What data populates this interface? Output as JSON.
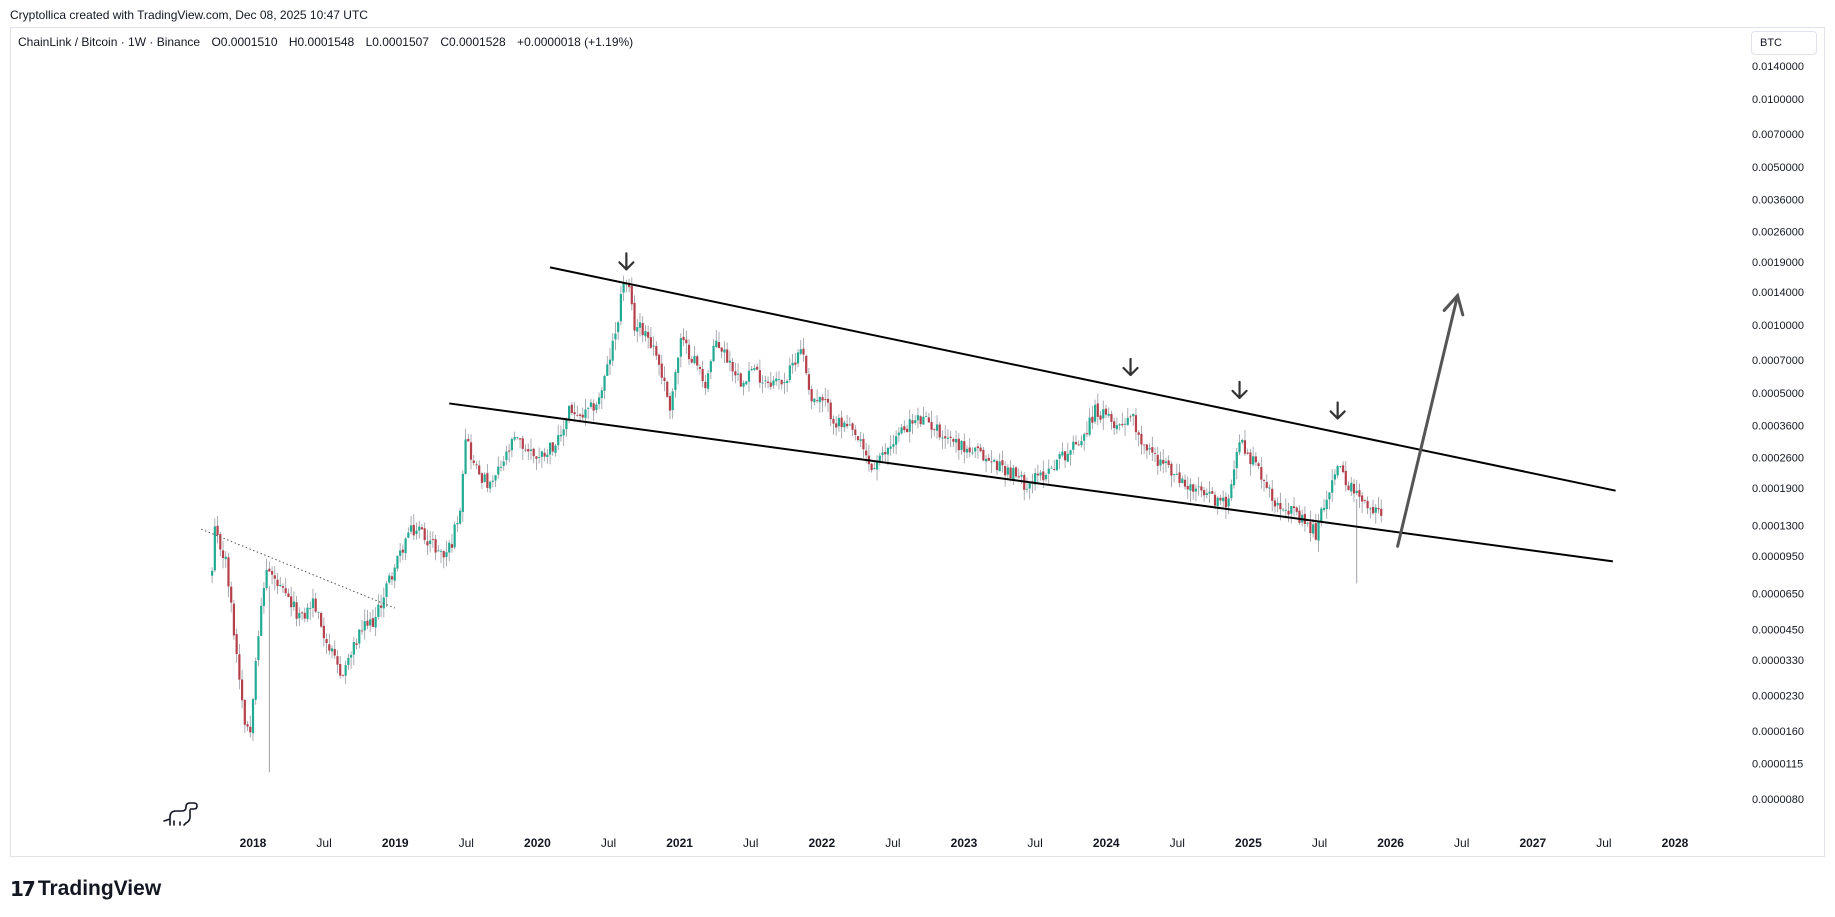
{
  "header": {
    "attribution": "Cryptollica created with TradingView.com, Dec 08, 2025 10:47 UTC"
  },
  "legend": {
    "symbol": "ChainLink / Bitcoin · 1W · Binance",
    "open": "O0.0001510",
    "high": "H0.0001548",
    "low": "L0.0001507",
    "close": "C0.0001528",
    "change": "+0.0000018 (+1.19%)"
  },
  "currency": "BTC",
  "footer": {
    "brand": "TradingView"
  },
  "colors": {
    "up": "#089981",
    "down": "#f23645",
    "candle_up": "#22ab94",
    "candle_down": "#b6404a",
    "line": "#000000",
    "arrow": "#333333"
  },
  "chart_data": {
    "type": "candlestick",
    "scale": "log",
    "y_ticks": [
      "0.0140000",
      "0.0100000",
      "0.0070000",
      "0.0050000",
      "0.0036000",
      "0.0026000",
      "0.0019000",
      "0.0014000",
      "0.0010000",
      "0.0007000",
      "0.0005000",
      "0.0003600",
      "0.0002600",
      "0.0001900",
      "0.0001300",
      "0.0000950",
      "0.0000650",
      "0.0000450",
      "0.0000330",
      "0.0000230",
      "0.0000160",
      "0.0000115",
      "0.0000080"
    ],
    "x_ticks": [
      {
        "label": "2018",
        "major": true
      },
      {
        "label": "Jul",
        "major": false
      },
      {
        "label": "2019",
        "major": true
      },
      {
        "label": "Jul",
        "major": false
      },
      {
        "label": "2020",
        "major": true
      },
      {
        "label": "Jul",
        "major": false
      },
      {
        "label": "2021",
        "major": true
      },
      {
        "label": "Jul",
        "major": false
      },
      {
        "label": "2022",
        "major": true
      },
      {
        "label": "Jul",
        "major": false
      },
      {
        "label": "2023",
        "major": true
      },
      {
        "label": "Jul",
        "major": false
      },
      {
        "label": "2024",
        "major": true
      },
      {
        "label": "Jul",
        "major": false
      },
      {
        "label": "2025",
        "major": true
      },
      {
        "label": "Jul",
        "major": false
      },
      {
        "label": "2026",
        "major": true
      },
      {
        "label": "Jul",
        "major": false
      },
      {
        "label": "2027",
        "major": true
      },
      {
        "label": "Jul",
        "major": false
      },
      {
        "label": "2028",
        "major": true
      }
    ],
    "price_path": [
      [
        "2017-09-18",
        8e-05
      ],
      [
        "2017-09-25",
        0.00012
      ],
      [
        "2017-10-23",
        9e-05
      ],
      [
        "2017-11-20",
        3.5e-05
      ],
      [
        "2017-12-11",
        1.8e-05
      ],
      [
        "2017-12-25",
        1.6e-05
      ],
      [
        "2018-01-08",
        3.5e-05
      ],
      [
        "2018-02-05",
        8.5e-05
      ],
      [
        "2018-03-05",
        7e-05
      ],
      [
        "2018-04-02",
        6e-05
      ],
      [
        "2018-05-07",
        5e-05
      ],
      [
        "2018-06-04",
        6e-05
      ],
      [
        "2018-07-09",
        4e-05
      ],
      [
        "2018-08-13",
        2.8e-05
      ],
      [
        "2018-09-10",
        3.5e-05
      ],
      [
        "2018-10-08",
        4.5e-05
      ],
      [
        "2018-11-12",
        5e-05
      ],
      [
        "2018-12-10",
        7e-05
      ],
      [
        "2019-01-07",
        9e-05
      ],
      [
        "2019-02-04",
        0.00012
      ],
      [
        "2019-03-04",
        0.000125
      ],
      [
        "2019-04-01",
        0.00011
      ],
      [
        "2019-05-06",
        9.5e-05
      ],
      [
        "2019-05-27",
        0.00011
      ],
      [
        "2019-06-17",
        0.00016
      ],
      [
        "2019-07-01",
        0.00033
      ],
      [
        "2019-07-22",
        0.00024
      ],
      [
        "2019-09-02",
        0.00019
      ],
      [
        "2019-10-07",
        0.00025
      ],
      [
        "2019-11-04",
        0.00031
      ],
      [
        "2019-12-09",
        0.00028
      ],
      [
        "2020-01-06",
        0.00026
      ],
      [
        "2020-02-03",
        0.00029
      ],
      [
        "2020-03-02",
        0.00031
      ],
      [
        "2020-03-23",
        0.00044
      ],
      [
        "2020-04-13",
        0.00038
      ],
      [
        "2020-05-11",
        0.00041
      ],
      [
        "2020-06-08",
        0.00047
      ],
      [
        "2020-06-29",
        0.00064
      ],
      [
        "2020-07-20",
        0.00092
      ],
      [
        "2020-08-10",
        0.00158
      ],
      [
        "2020-08-24",
        0.00138
      ],
      [
        "2020-09-07",
        0.00099
      ],
      [
        "2020-10-05",
        0.00095
      ],
      [
        "2020-11-02",
        0.00075
      ],
      [
        "2020-12-07",
        0.00044
      ],
      [
        "2021-01-04",
        0.00085
      ],
      [
        "2021-02-08",
        0.0007
      ],
      [
        "2021-03-08",
        0.00055
      ],
      [
        "2021-04-05",
        0.00085
      ],
      [
        "2021-05-03",
        0.00072
      ],
      [
        "2021-06-07",
        0.00057
      ],
      [
        "2021-07-05",
        0.00064
      ],
      [
        "2021-08-02",
        0.00058
      ],
      [
        "2021-09-06",
        0.00056
      ],
      [
        "2021-10-04",
        0.00058
      ],
      [
        "2021-11-08",
        0.00082
      ],
      [
        "2021-12-06",
        0.00047
      ],
      [
        "2022-01-10",
        0.00045
      ],
      [
        "2022-02-07",
        0.00037
      ],
      [
        "2022-03-07",
        0.00035
      ],
      [
        "2022-04-04",
        0.00031
      ],
      [
        "2022-05-09",
        0.00023
      ],
      [
        "2022-06-06",
        0.00026
      ],
      [
        "2022-07-04",
        0.00031
      ],
      [
        "2022-08-08",
        0.00036
      ],
      [
        "2022-09-05",
        0.00038
      ],
      [
        "2022-10-03",
        0.00037
      ],
      [
        "2022-11-07",
        0.00033
      ],
      [
        "2022-12-05",
        0.00031
      ],
      [
        "2023-01-09",
        0.00028
      ],
      [
        "2023-02-06",
        0.00027
      ],
      [
        "2023-03-06",
        0.00025
      ],
      [
        "2023-04-03",
        0.00024
      ],
      [
        "2023-05-08",
        0.00022
      ],
      [
        "2023-06-05",
        0.0002
      ],
      [
        "2023-07-10",
        0.00021
      ],
      [
        "2023-08-07",
        0.00023
      ],
      [
        "2023-09-04",
        0.00026
      ],
      [
        "2023-10-02",
        0.00028
      ],
      [
        "2023-11-06",
        0.00033
      ],
      [
        "2023-12-04",
        0.00042
      ],
      [
        "2024-01-08",
        0.00038
      ],
      [
        "2024-02-05",
        0.00036
      ],
      [
        "2024-03-04",
        0.00041
      ],
      [
        "2024-04-01",
        0.00031
      ],
      [
        "2024-05-06",
        0.00026
      ],
      [
        "2024-06-03",
        0.00024
      ],
      [
        "2024-07-01",
        0.00021
      ],
      [
        "2024-08-05",
        0.00019
      ],
      [
        "2024-09-02",
        0.00018
      ],
      [
        "2024-10-07",
        0.00017
      ],
      [
        "2024-11-04",
        0.00016
      ],
      [
        "2024-11-18",
        0.00021
      ],
      [
        "2024-12-09",
        0.00031
      ],
      [
        "2025-01-06",
        0.00026
      ],
      [
        "2025-02-03",
        0.00022
      ],
      [
        "2025-03-03",
        0.00017
      ],
      [
        "2025-04-07",
        0.00016
      ],
      [
        "2025-05-05",
        0.00014
      ],
      [
        "2025-06-02",
        0.00013
      ],
      [
        "2025-06-23",
        0.00012
      ],
      [
        "2025-07-14",
        0.00016
      ],
      [
        "2025-08-11",
        0.00023
      ],
      [
        "2025-09-01",
        0.00022
      ],
      [
        "2025-09-22",
        0.00019
      ],
      [
        "2025-10-13",
        0.00017
      ],
      [
        "2025-11-10",
        0.00015
      ],
      [
        "2025-12-08",
        0.0001528
      ]
    ],
    "trendlines": [
      {
        "from": [
          "2020-02-03",
          0.0018
        ],
        "to": [
          "2027-08-02",
          0.000185
        ]
      },
      {
        "from": [
          "2019-05-20",
          0.00045
        ],
        "to": [
          "2027-07-26",
          9e-05
        ]
      },
      {
        "from": [
          "2017-08-21",
          0.000125
        ],
        "to": [
          "2018-12-31",
          5.6e-05
        ],
        "style": "dotted"
      }
    ],
    "peak_markers": [
      "2020-08-17",
      "2024-03-04",
      "2024-12-09",
      "2025-08-18"
    ],
    "projection_arrow": {
      "from": [
        "2026-01-19",
        0.000105
      ],
      "to": [
        "2026-06-22",
        0.00135
      ]
    }
  }
}
